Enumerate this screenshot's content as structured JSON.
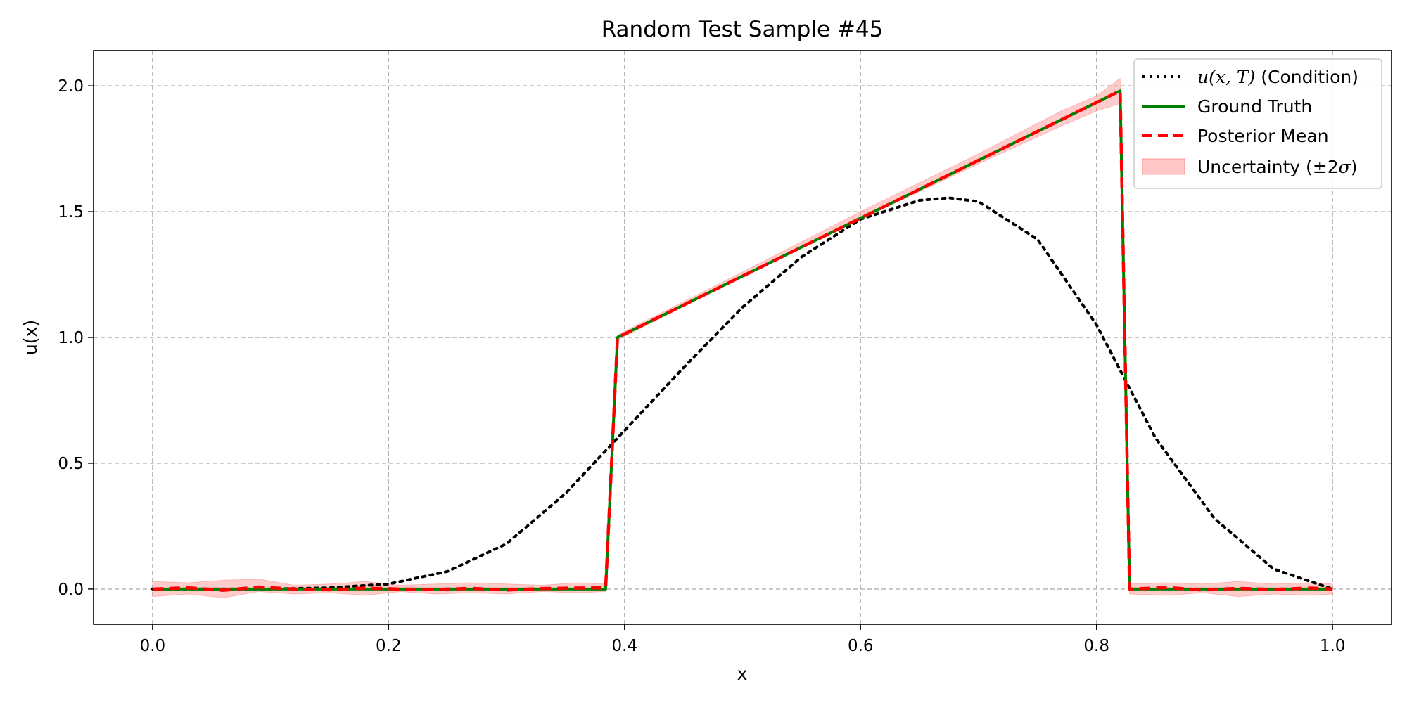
{
  "chart_data": {
    "type": "line",
    "title": "Random Test Sample #45",
    "xlabel": "x",
    "ylabel": "u(x)",
    "xlim": [
      -0.05,
      1.05
    ],
    "ylim": [
      -0.14,
      2.14
    ],
    "xticks": [
      0.0,
      0.2,
      0.4,
      0.6,
      0.8,
      1.0
    ],
    "xtick_labels": [
      "0.0",
      "0.2",
      "0.4",
      "0.6",
      "0.8",
      "1.0"
    ],
    "yticks": [
      0.0,
      0.5,
      1.0,
      1.5,
      2.0
    ],
    "ytick_labels": [
      "0.0",
      "0.5",
      "1.0",
      "1.5",
      "2.0"
    ],
    "grid": true,
    "legend_position": "top-right",
    "legend": {
      "condition": {
        "math": "u(x, T)",
        "text": " (Condition)"
      },
      "ground_truth": "Ground Truth",
      "posterior_mean": "Posterior Mean",
      "uncertainty": {
        "prefix": "Uncertainty (±2",
        "sigma": "σ",
        "suffix": ")"
      }
    },
    "colors": {
      "condition": "#000000",
      "ground_truth": "#008000",
      "posterior_mean": "#ff0000",
      "uncertainty_fill": "#ff9999",
      "grid": "#b0b0b0"
    },
    "series": {
      "ground_truth": {
        "x": [
          0.0,
          0.384,
          0.394,
          0.82,
          0.828,
          1.0
        ],
        "y": [
          0.0,
          0.0,
          1.0,
          1.98,
          0.0,
          0.0
        ]
      },
      "posterior_mean": {
        "x": [
          0.0,
          0.03,
          0.06,
          0.09,
          0.12,
          0.15,
          0.18,
          0.21,
          0.24,
          0.27,
          0.3,
          0.33,
          0.36,
          0.384,
          0.394,
          0.82,
          0.828,
          0.86,
          0.89,
          0.92,
          0.95,
          0.98,
          1.0
        ],
        "y": [
          0.0,
          0.005,
          -0.005,
          0.008,
          0.0,
          -0.003,
          0.004,
          0.0,
          -0.002,
          0.003,
          -0.004,
          0.002,
          0.004,
          0.005,
          1.0,
          1.98,
          0.0,
          0.006,
          -0.004,
          0.003,
          -0.002,
          0.004,
          0.0
        ]
      },
      "uncertainty": {
        "x": [
          0.0,
          0.03,
          0.06,
          0.09,
          0.12,
          0.15,
          0.18,
          0.21,
          0.24,
          0.27,
          0.3,
          0.33,
          0.36,
          0.384,
          0.394,
          0.5,
          0.6,
          0.7,
          0.77,
          0.8,
          0.82,
          0.828,
          0.86,
          0.89,
          0.92,
          0.95,
          0.98,
          1.0
        ],
        "lower": [
          -0.03,
          -0.02,
          -0.035,
          -0.01,
          -0.02,
          -0.015,
          -0.025,
          -0.01,
          -0.02,
          -0.015,
          -0.02,
          -0.01,
          -0.015,
          -0.01,
          0.99,
          1.24,
          1.47,
          1.69,
          1.84,
          1.9,
          1.93,
          -0.02,
          -0.025,
          -0.015,
          -0.03,
          -0.02,
          -0.025,
          -0.02
        ],
        "upper": [
          0.03,
          0.025,
          0.035,
          0.04,
          0.015,
          0.02,
          0.03,
          0.015,
          0.02,
          0.025,
          0.02,
          0.015,
          0.025,
          0.02,
          1.01,
          1.26,
          1.5,
          1.73,
          1.9,
          1.96,
          2.03,
          0.02,
          0.025,
          0.02,
          0.03,
          0.02,
          0.025,
          0.02
        ]
      },
      "condition": {
        "x": [
          0.0,
          0.05,
          0.1,
          0.15,
          0.2,
          0.25,
          0.3,
          0.35,
          0.4,
          0.45,
          0.5,
          0.55,
          0.6,
          0.65,
          0.675,
          0.7,
          0.75,
          0.8,
          0.85,
          0.9,
          0.95,
          1.0
        ],
        "y": [
          0.0,
          0.0,
          0.0,
          0.005,
          0.02,
          0.07,
          0.18,
          0.38,
          0.63,
          0.88,
          1.12,
          1.32,
          1.47,
          1.545,
          1.555,
          1.54,
          1.39,
          1.05,
          0.6,
          0.28,
          0.08,
          0.0
        ]
      }
    }
  }
}
